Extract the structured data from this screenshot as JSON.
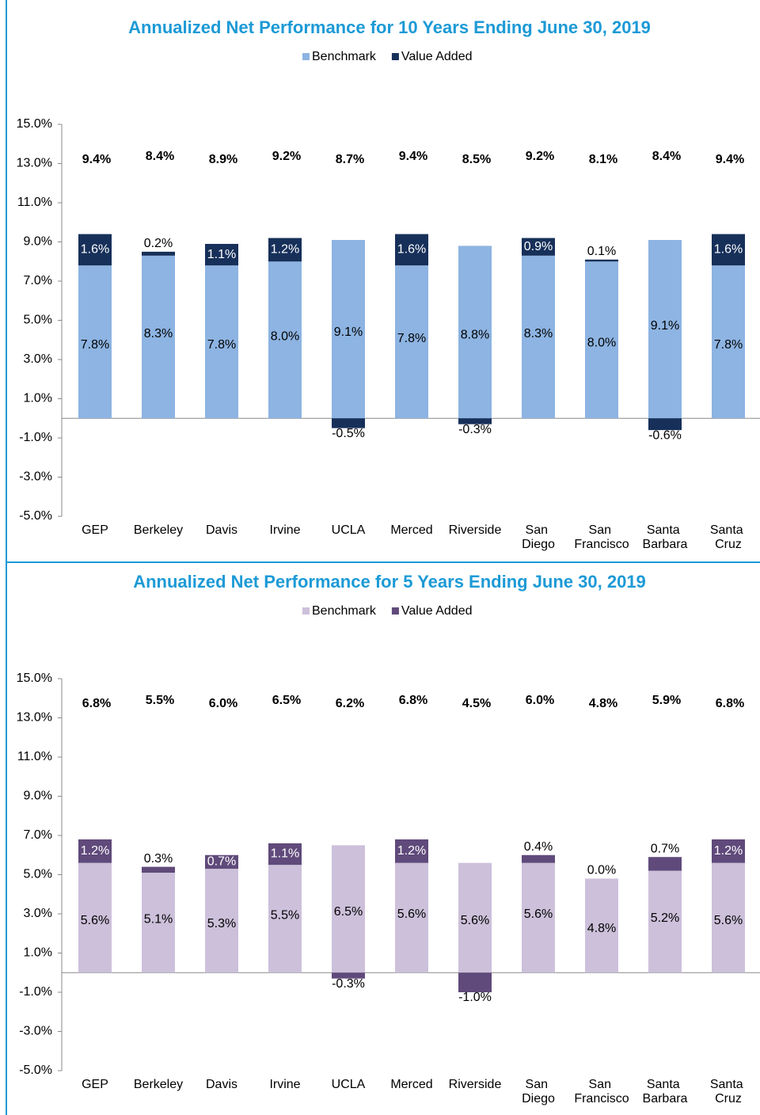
{
  "chart_data": [
    {
      "type": "stacked_bar",
      "title": "Annualized Net Performance for 10 Years Ending June 30, 2019",
      "categories": [
        "GEP",
        "Berkeley",
        "Davis",
        "Irvine",
        "UCLA",
        "Merced",
        "Riverside",
        "San Diego",
        "San Francisco",
        "Santa Barbara",
        "Santa Cruz"
      ],
      "series": [
        {
          "name": "Benchmark",
          "color": "#8db4e2",
          "values": [
            7.8,
            8.3,
            7.8,
            8.0,
            9.1,
            7.8,
            8.8,
            8.3,
            8.0,
            9.1,
            7.8
          ],
          "value_labels": [
            "7.8%",
            "8.3%",
            "7.8%",
            "8.0%",
            "9.1%",
            "7.8%",
            "8.8%",
            "8.3%",
            "8.0%",
            "9.1%",
            "7.8%"
          ]
        },
        {
          "name": "Value Added",
          "color": "#17305a",
          "values": [
            1.6,
            0.2,
            1.1,
            1.2,
            -0.5,
            1.6,
            -0.3,
            0.9,
            0.1,
            -0.6,
            1.6
          ],
          "value_labels": [
            "1.6%",
            "0.2%",
            "1.1%",
            "1.2%",
            "-0.5%",
            "1.6%",
            "-0.3%",
            "0.9%",
            "0.1%",
            "-0.6%",
            "1.6%"
          ]
        }
      ],
      "totals": [
        9.4,
        8.4,
        8.9,
        9.2,
        8.7,
        9.4,
        8.5,
        9.2,
        8.1,
        8.4,
        9.4
      ],
      "total_labels": [
        "9.4%",
        "8.4%",
        "8.9%",
        "9.2%",
        "8.7%",
        "9.4%",
        "8.5%",
        "9.2%",
        "8.1%",
        "8.4%",
        "9.4%"
      ],
      "ylim": [
        -5,
        15
      ],
      "yticks": [
        {
          "value": -5,
          "label": "-5.0%"
        },
        {
          "value": -3,
          "label": "-3.0%"
        },
        {
          "value": -1,
          "label": "-1.0%"
        },
        {
          "value": 1,
          "label": "1.0%"
        },
        {
          "value": 3,
          "label": "3.0%"
        },
        {
          "value": 5,
          "label": "5.0%"
        },
        {
          "value": 7,
          "label": "7.0%"
        },
        {
          "value": 9,
          "label": "9.0%"
        },
        {
          "value": 11,
          "label": "11.0%"
        },
        {
          "value": 13,
          "label": "13.0%"
        },
        {
          "value": 15,
          "label": "15.0%"
        }
      ],
      "legend": "top"
    },
    {
      "type": "stacked_bar",
      "title": "Annualized Net Performance for 5 Years Ending June 30, 2019",
      "categories": [
        "GEP",
        "Berkeley",
        "Davis",
        "Irvine",
        "UCLA",
        "Merced",
        "Riverside",
        "San Diego",
        "San Francisco",
        "Santa Barbara",
        "Santa Cruz"
      ],
      "series": [
        {
          "name": "Benchmark",
          "color": "#ccc0da",
          "values": [
            5.6,
            5.1,
            5.3,
            5.5,
            6.5,
            5.6,
            5.6,
            5.6,
            4.8,
            5.2,
            5.6
          ],
          "value_labels": [
            "5.6%",
            "5.1%",
            "5.3%",
            "5.5%",
            "6.5%",
            "5.6%",
            "5.6%",
            "5.6%",
            "4.8%",
            "5.2%",
            "5.6%"
          ]
        },
        {
          "name": "Value Added",
          "color": "#604a7b",
          "values": [
            1.2,
            0.3,
            0.7,
            1.1,
            -0.3,
            1.2,
            -1.0,
            0.4,
            0.0,
            0.7,
            1.2
          ],
          "value_labels": [
            "1.2%",
            "0.3%",
            "0.7%",
            "1.1%",
            "-0.3%",
            "1.2%",
            "-1.0%",
            "0.4%",
            "0.0%",
            "0.7%",
            "1.2%"
          ]
        }
      ],
      "totals": [
        6.8,
        5.5,
        6.0,
        6.5,
        6.2,
        6.8,
        4.5,
        6.0,
        4.8,
        5.9,
        6.8
      ],
      "total_labels": [
        "6.8%",
        "5.5%",
        "6.0%",
        "6.5%",
        "6.2%",
        "6.8%",
        "4.5%",
        "6.0%",
        "4.8%",
        "5.9%",
        "6.8%"
      ],
      "ylim": [
        -5,
        15
      ],
      "yticks": [
        {
          "value": -5,
          "label": "-5.0%"
        },
        {
          "value": -3,
          "label": "-3.0%"
        },
        {
          "value": -1,
          "label": "-1.0%"
        },
        {
          "value": 1,
          "label": "1.0%"
        },
        {
          "value": 3,
          "label": "3.0%"
        },
        {
          "value": 5,
          "label": "5.0%"
        },
        {
          "value": 7,
          "label": "7.0%"
        },
        {
          "value": 9,
          "label": "9.0%"
        },
        {
          "value": 11,
          "label": "11.0%"
        },
        {
          "value": 13,
          "label": "13.0%"
        },
        {
          "value": 15,
          "label": "15.0%"
        }
      ],
      "legend": "top"
    }
  ]
}
